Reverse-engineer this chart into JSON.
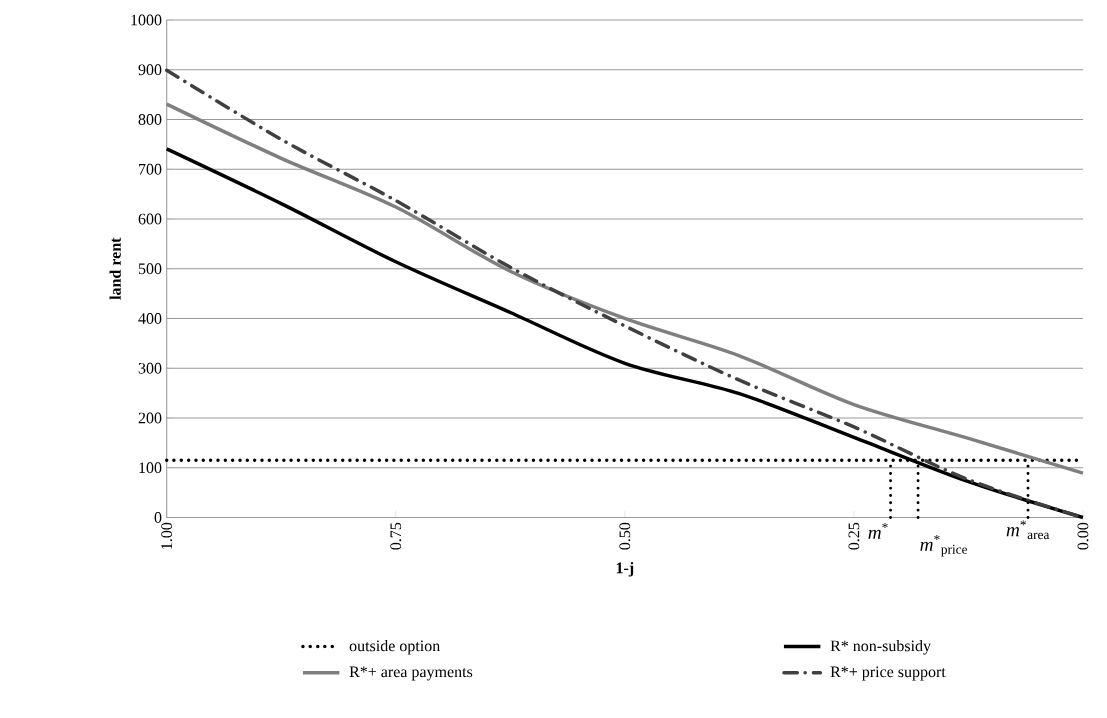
{
  "chart_data": {
    "type": "line",
    "xlabel": "1-j",
    "ylabel": "land rent",
    "x": [
      1,
      0.875,
      0.75,
      0.625,
      0.5,
      0.375,
      0.25,
      0.125,
      0
    ],
    "series": [
      {
        "name": "outside option",
        "color": "#000000",
        "line_style": "dotted",
        "x": [
          1,
          0
        ],
        "values": [
          115,
          115
        ]
      },
      {
        "name": "R* non-subsidy",
        "color": "#000000",
        "line_style": "solid",
        "values": [
          741,
          631,
          514,
          412,
          310,
          249,
          161,
          72,
          0
        ]
      },
      {
        "name": "R*+ area payments",
        "color": "#7f7f7f",
        "line_style": "solid",
        "values": [
          831,
          722,
          624,
          495,
          400,
          325,
          227,
          159,
          89
        ]
      },
      {
        "name": "R*+ price support",
        "color": "#404040",
        "line_style": "dashdot",
        "values": [
          899,
          760,
          637,
          503,
          385,
          276,
          182,
          76,
          0
        ]
      }
    ],
    "xlim": [
      1,
      0
    ],
    "xticks": [
      {
        "value": 1,
        "label": "1.00"
      },
      {
        "value": 0.75,
        "label": "0.75"
      },
      {
        "value": 0.5,
        "label": "0.50"
      },
      {
        "value": 0.25,
        "label": "0.25"
      },
      {
        "value": 0,
        "label": "0.00"
      }
    ],
    "ylim": [
      0,
      1000
    ],
    "yticks": [
      0,
      100,
      200,
      300,
      400,
      500,
      600,
      700,
      800,
      900,
      1000
    ],
    "ref_lines": [
      {
        "axis": "x",
        "value": 0.21,
        "label": "*m*$^{*}$",
        "line_style": "dotted"
      },
      {
        "axis": "x",
        "value": 0.18,
        "label": "*m*$^{*}$$_{price}$",
        "line_style": "dotted"
      },
      {
        "axis": "x",
        "value": 0.06,
        "label": "*m*$^{*}$$_{area}$",
        "line_style": "dotted"
      }
    ],
    "grid": "y",
    "legend": "bottom"
  }
}
